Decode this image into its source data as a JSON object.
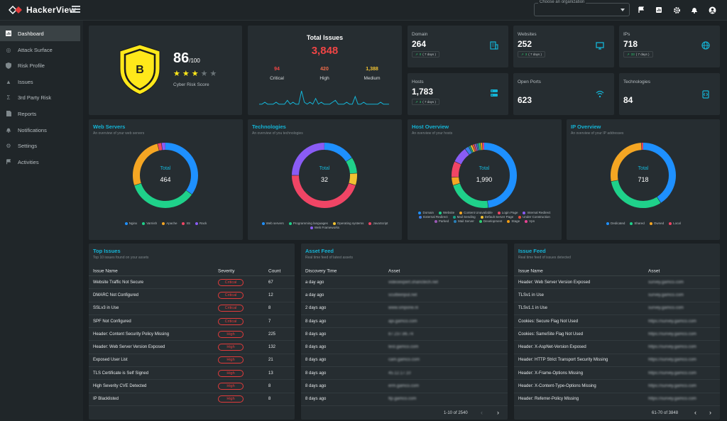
{
  "app": {
    "name": "HackerView"
  },
  "topbar": {
    "org_placeholder": "Choose an organization"
  },
  "sidebar": {
    "items": [
      {
        "label": "Dashboard",
        "icon": "dashboard-icon"
      },
      {
        "label": "Attack Surface",
        "icon": "radar-icon"
      },
      {
        "label": "Risk Profile",
        "icon": "shield-icon"
      },
      {
        "label": "Issues",
        "icon": "warning-icon"
      },
      {
        "label": "3rd Party Risk",
        "icon": "sigma-icon"
      },
      {
        "label": "Reports",
        "icon": "file-icon"
      },
      {
        "label": "Notifications",
        "icon": "bell-icon"
      },
      {
        "label": "Settings",
        "icon": "gear-icon"
      },
      {
        "label": "Activities",
        "icon": "flag-icon"
      }
    ]
  },
  "score": {
    "grade": "B",
    "value": "86",
    "max": "/100",
    "label": "Cyber Risk Score",
    "stars_filled": 3,
    "stars_total": 5
  },
  "total_issues": {
    "title": "Total Issues",
    "count": "3,848",
    "critical": {
      "count": "94",
      "label": "Critical",
      "color": "#f04545"
    },
    "high": {
      "count": "420",
      "label": "High",
      "color": "#f26d4a"
    },
    "medium": {
      "count": "1,388",
      "label": "Medium",
      "color": "#f1c232"
    },
    "sparkline": [
      2,
      2,
      3,
      2,
      2,
      2,
      3,
      2,
      2,
      2,
      4,
      2,
      3,
      2,
      2,
      9,
      3,
      2,
      3,
      2,
      5,
      2,
      3,
      2,
      2,
      2,
      3,
      4,
      2,
      2,
      2,
      3,
      2,
      2,
      6,
      2,
      2,
      3,
      2,
      2,
      2,
      2,
      2,
      3,
      2,
      2,
      2
    ]
  },
  "stats": [
    {
      "label": "Domain",
      "value": "264",
      "delta": "0",
      "days": "( 7 days )",
      "icon": "building-icon"
    },
    {
      "label": "Websites",
      "value": "252",
      "delta": "3",
      "days": "( 7 days )",
      "icon": "monitor-icon"
    },
    {
      "label": "IPs",
      "value": "718",
      "delta": "33",
      "days": "( 7 days )",
      "icon": "globe-icon"
    },
    {
      "label": "Hosts",
      "value": "1,783",
      "delta": "3",
      "days": "( 7 days )",
      "icon": "server-icon"
    },
    {
      "label": "Open Ports",
      "value": "623",
      "icon": "signal-icon"
    },
    {
      "label": "Technologies",
      "value": "84",
      "icon": "code-icon"
    }
  ],
  "donuts": [
    {
      "title": "Web Servers",
      "subtitle": "An overview of your web servers",
      "total_label": "Total",
      "total": "464",
      "chart_data": {
        "type": "pie",
        "slices": [
          {
            "name": "Nginx",
            "value": 35,
            "color": "#1e90ff"
          },
          {
            "name": "Varnish",
            "value": 35,
            "color": "#1fd18a"
          },
          {
            "name": "Apache",
            "value": 26,
            "color": "#f5a623"
          },
          {
            "name": "IIS",
            "value": 2,
            "color": "#f04565"
          },
          {
            "name": "Rack",
            "value": 2,
            "color": "#8a5cf5"
          }
        ]
      }
    },
    {
      "title": "Technologies",
      "subtitle": "An overview of you technologies",
      "total_label": "Total",
      "total": "32",
      "chart_data": {
        "type": "pie",
        "slices": [
          {
            "name": "Web servers",
            "value": 16,
            "color": "#1e90ff"
          },
          {
            "name": "Programming languages",
            "value": 8,
            "color": "#1fd18a"
          },
          {
            "name": "Operating systems",
            "value": 6,
            "color": "#f1c232"
          },
          {
            "name": "JavaScript",
            "value": 45,
            "color": "#f04565"
          },
          {
            "name": "Web Frameworks",
            "value": 25,
            "color": "#8a5cf5"
          }
        ]
      }
    },
    {
      "title": "Host Overview",
      "subtitle": "An overview of your hosts",
      "total_label": "Total",
      "total": "1,990",
      "chart_data": {
        "type": "pie",
        "slices": [
          {
            "name": "Domain",
            "value": 48,
            "color": "#1e90ff"
          },
          {
            "name": "Website",
            "value": 22,
            "color": "#1fd18a"
          },
          {
            "name": "Content Unavailable",
            "value": 4,
            "color": "#f5a623"
          },
          {
            "name": "Login Page",
            "value": 8,
            "color": "#f04565"
          },
          {
            "name": "Internal Redirect",
            "value": 8,
            "color": "#8a5cf5"
          },
          {
            "name": "External Redirect",
            "value": 2,
            "color": "#3b7de9"
          },
          {
            "name": "Mail Sending",
            "value": 1,
            "color": "#16a085"
          },
          {
            "name": "Default Server Page",
            "value": 1,
            "color": "#f1c232"
          },
          {
            "name": "Under Construction",
            "value": 1,
            "color": "#e74c3c"
          },
          {
            "name": "Parked",
            "value": 1,
            "color": "#9b59b6"
          },
          {
            "name": "Mail Server",
            "value": 1,
            "color": "#2980b9"
          },
          {
            "name": "Development",
            "value": 1,
            "color": "#2ecc71"
          },
          {
            "name": "Stage",
            "value": 1,
            "color": "#f39c12"
          },
          {
            "name": "Vpn",
            "value": 1,
            "color": "#e84393"
          }
        ]
      }
    },
    {
      "title": "IP Overview",
      "subtitle": "An overview of your IP addresses",
      "total_label": "Total",
      "total": "718",
      "chart_data": {
        "type": "pie",
        "slices": [
          {
            "name": "Dedicated",
            "value": 41,
            "color": "#1e90ff"
          },
          {
            "name": "Shared",
            "value": 31,
            "color": "#1fd18a"
          },
          {
            "name": "Owned",
            "value": 27,
            "color": "#f5a623"
          },
          {
            "name": "Local",
            "value": 1,
            "color": "#f04565"
          }
        ]
      }
    }
  ],
  "top_issues": {
    "title": "Top Issues",
    "subtitle": "Top 10 issues found on your assets",
    "headers": {
      "name": "Issue Name",
      "severity": "Severity",
      "count": "Count"
    },
    "rows": [
      {
        "name": "Website Traffic Not Secure",
        "severity": "Critical",
        "count": "67"
      },
      {
        "name": "DMARC Not Configured",
        "severity": "Critical",
        "count": "12"
      },
      {
        "name": "SSLv3 in Use",
        "severity": "Critical",
        "count": "8"
      },
      {
        "name": "SPF Not Configured",
        "severity": "Critical",
        "count": "7"
      },
      {
        "name": "Header: Content Security Policy Missing",
        "severity": "High",
        "count": "225"
      },
      {
        "name": "Header: Web Server Version Exposed",
        "severity": "High",
        "count": "132"
      },
      {
        "name": "Exposed User List",
        "severity": "High",
        "count": "21"
      },
      {
        "name": "TLS Certificate is Self Signed",
        "severity": "High",
        "count": "13"
      },
      {
        "name": "High Severity CVE Detected",
        "severity": "High",
        "count": "8"
      },
      {
        "name": "IP Blacklisted",
        "severity": "High",
        "count": "8"
      }
    ]
  },
  "asset_feed": {
    "title": "Asset Feed",
    "subtitle": "Real time feed of latest assets",
    "headers": {
      "time": "Discovery Time",
      "asset": "Asset"
    },
    "rows": [
      {
        "time": "a day ago",
        "asset": "videoexpert.shanctech.net"
      },
      {
        "time": "a day ago",
        "asset": "scuttleinput.net"
      },
      {
        "time": "2 days ago",
        "asset": "www.smpone.nl"
      },
      {
        "time": "8 days ago",
        "asset": "api.gamco.com"
      },
      {
        "time": "8 days ago",
        "asset": "87.237.86.74"
      },
      {
        "time": "8 days ago",
        "asset": "test.gamco.com"
      },
      {
        "time": "8 days ago",
        "asset": "cam.gamco.com"
      },
      {
        "time": "8 days ago",
        "asset": "45.12.17.10"
      },
      {
        "time": "8 days ago",
        "asset": "erm.gamco.com"
      },
      {
        "time": "8 days ago",
        "asset": "ftp.gamco.com"
      }
    ],
    "pager": "1-10 of 2540"
  },
  "issue_feed": {
    "title": "Issue Feed",
    "subtitle": "Real time feed of issues detected",
    "headers": {
      "name": "Issue Name",
      "asset": "Asset"
    },
    "rows": [
      {
        "name": "Header: Web Server Version Exposed",
        "asset": "survey.gamco.com"
      },
      {
        "name": "TLSv1 in Use",
        "asset": "survey.gamco.com"
      },
      {
        "name": "TLSv1.1 in Use",
        "asset": "survey.gamco.com"
      },
      {
        "name": "Cookies: Secure Flag Not Used",
        "asset": "https://survey.gamco.com"
      },
      {
        "name": "Cookies: SameSite Flag Not Used",
        "asset": "https://survey.gamco.com"
      },
      {
        "name": "Header: X-AspNet-Version Exposed",
        "asset": "https://survey.gamco.com"
      },
      {
        "name": "Header: HTTP Strict Transport Security Missing",
        "asset": "https://survey.gamco.com"
      },
      {
        "name": "Header: X-Frame-Options Missing",
        "asset": "https://survey.gamco.com"
      },
      {
        "name": "Header: X-Content-Type-Options Missing",
        "asset": "https://survey.gamco.com"
      },
      {
        "name": "Header: Referrer-Policy Missing",
        "asset": "https://survey.gamco.com"
      }
    ],
    "pager": "61-70 of 3848"
  }
}
